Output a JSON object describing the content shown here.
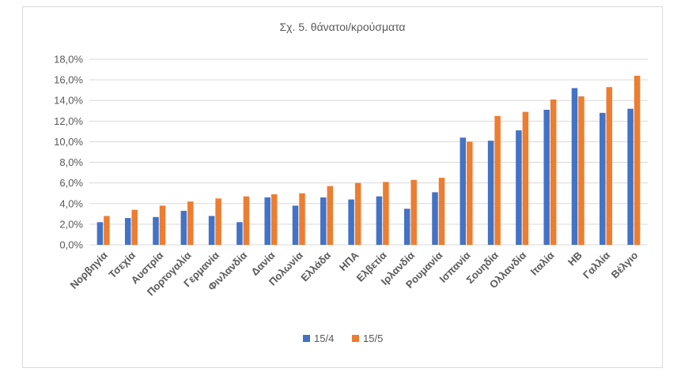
{
  "chart_data": {
    "type": "bar",
    "title": "Σχ. 5. θάνατοι/κρούσματα",
    "categories": [
      "Νορβηγία",
      "Τσεχία",
      "Αυστρία",
      "Πορτογαλία",
      "Γερμανία",
      "Φινλανδία",
      "Δανία",
      "Πολωνία",
      "Ελλάδα",
      "ΗΠΑ",
      "Ελβετία",
      "Ιρλανδία",
      "Ρουμανία",
      "Ισπανία",
      "Σουηδία",
      "Ολλανδία",
      "Ιταλία",
      "ΗΒ",
      "Γαλλία",
      "Βέλγιο"
    ],
    "series": [
      {
        "name": "15/4",
        "color": "#4472c4",
        "values": [
          2.2,
          2.6,
          2.7,
          3.3,
          2.8,
          2.2,
          4.6,
          3.8,
          4.6,
          4.4,
          4.7,
          3.5,
          5.1,
          10.4,
          10.1,
          11.1,
          13.1,
          15.2,
          12.8,
          13.2
        ]
      },
      {
        "name": "15/5",
        "color": "#ed7d31",
        "values": [
          2.8,
          3.4,
          3.8,
          4.2,
          4.5,
          4.7,
          4.9,
          5.0,
          5.7,
          6.0,
          6.1,
          6.3,
          6.5,
          10.0,
          12.5,
          12.9,
          14.1,
          14.4,
          15.3,
          16.4
        ]
      }
    ],
    "ylim": [
      0,
      18
    ],
    "yticks": [
      "0,0%",
      "2,0%",
      "4,0%",
      "6,0%",
      "8,0%",
      "10,0%",
      "12,0%",
      "14,0%",
      "16,0%",
      "18,0%"
    ],
    "ytick_values": [
      0,
      2,
      4,
      6,
      8,
      10,
      12,
      14,
      16,
      18
    ],
    "xlabel": "",
    "ylabel": "",
    "grid": true,
    "legend_position": "bottom"
  }
}
